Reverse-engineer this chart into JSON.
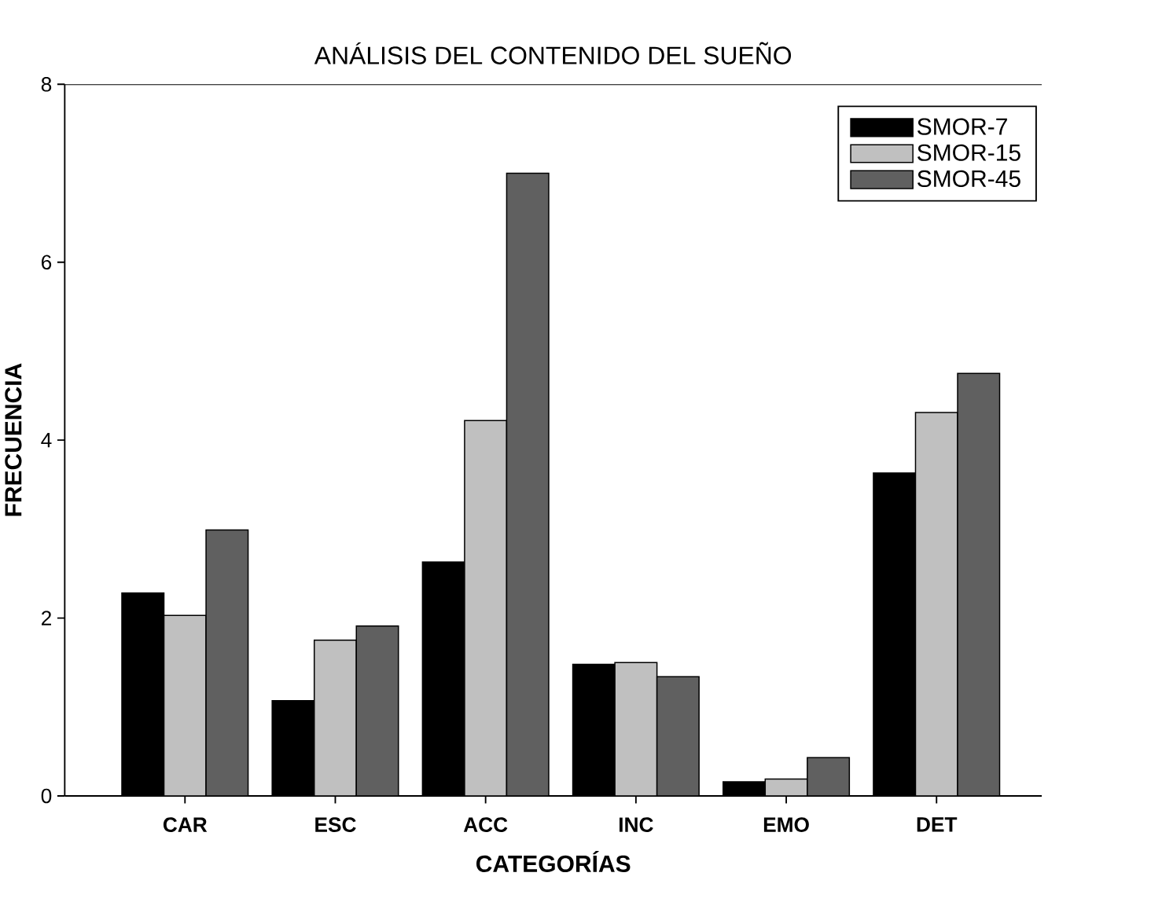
{
  "chart_data": {
    "type": "bar",
    "title": "ANÁLISIS DEL CONTENIDO DEL SUEÑO",
    "xlabel": "CATEGORÍAS",
    "ylabel": "FRECUENCIA",
    "categories": [
      "CAR",
      "ESC",
      "ACC",
      "INC",
      "EMO",
      "DET"
    ],
    "series": [
      {
        "name": "SMOR-7",
        "color": "#000000",
        "values": [
          2.28,
          1.07,
          2.63,
          1.48,
          0.16,
          3.63
        ]
      },
      {
        "name": "SMOR-15",
        "color": "#c0c0c0",
        "values": [
          2.03,
          1.75,
          4.22,
          1.5,
          0.19,
          4.31
        ]
      },
      {
        "name": "SMOR-45",
        "color": "#606060",
        "values": [
          2.99,
          1.91,
          7.0,
          1.34,
          0.43,
          4.75
        ]
      }
    ],
    "ylim": [
      0,
      8
    ],
    "yticks": [
      0,
      2,
      4,
      6,
      8
    ],
    "grid": false,
    "legend": "top right"
  }
}
